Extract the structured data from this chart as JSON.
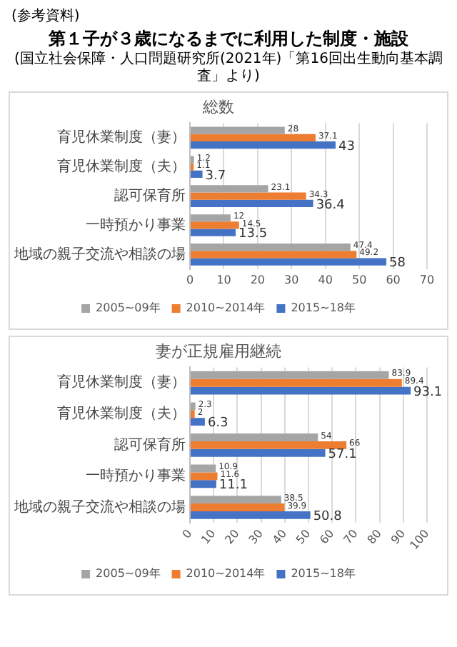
{
  "chart_data": [
    {
      "type": "bar",
      "orientation": "horizontal",
      "title": "総数",
      "annotations": [
        "(参考資料)",
        "第１子が３歳になるまでに利用した制度・施設",
        "(国立社会保障・人口問題研究所(2021年)「第16回出生動向基本調査」より)"
      ],
      "categories": [
        "育児休業制度（妻）",
        "育児休業制度（夫）",
        "認可保育所",
        "一時預かり事業",
        "地域の親子交流や相談の場"
      ],
      "series": [
        {
          "name": "2005~09年",
          "color": "#a5a5a5",
          "values": [
            28,
            1.2,
            23.1,
            12,
            47.4
          ]
        },
        {
          "name": "2010~2014年",
          "color": "#ed7d31",
          "values": [
            37.1,
            1.1,
            34.3,
            14.5,
            49.2
          ]
        },
        {
          "name": "2015~18年",
          "color": "#4472c4",
          "values": [
            43,
            3.7,
            36.4,
            13.5,
            58
          ]
        }
      ],
      "xlim": [
        0,
        70
      ],
      "xticks": [
        0,
        10,
        20,
        30,
        40,
        50,
        60,
        70
      ],
      "grid": "x",
      "legend": "bottom",
      "data_labels": true
    },
    {
      "type": "bar",
      "orientation": "horizontal",
      "title": "妻が正規雇用継続",
      "categories": [
        "育児休業制度（妻）",
        "育児休業制度（夫）",
        "認可保育所",
        "一時預かり事業",
        "地域の親子交流や相談の場"
      ],
      "series": [
        {
          "name": "2005~09年",
          "color": "#a5a5a5",
          "values": [
            83.9,
            2.3,
            54,
            10.9,
            38.5
          ]
        },
        {
          "name": "2010~2014年",
          "color": "#ed7d31",
          "values": [
            89.4,
            2,
            66,
            11.6,
            39.9
          ]
        },
        {
          "name": "2015~18年",
          "color": "#4472c4",
          "values": [
            93.1,
            6.3,
            57.1,
            11.1,
            50.8
          ]
        }
      ],
      "xlim": [
        0,
        100
      ],
      "xticks": [
        0,
        10,
        20,
        30,
        40,
        50,
        60,
        70,
        80,
        90,
        100
      ],
      "grid": "x",
      "legend": "bottom",
      "data_labels": true
    }
  ]
}
